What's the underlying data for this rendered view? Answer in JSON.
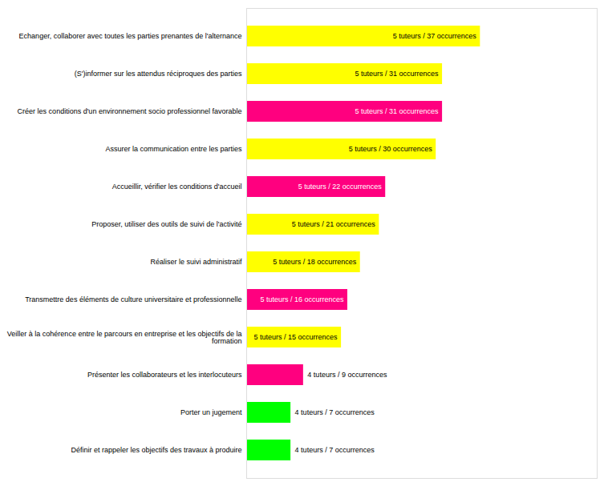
{
  "chart_data": {
    "type": "bar",
    "orientation": "horizontal",
    "categories": [
      "Echanger, collaborer avec toutes les parties prenantes de l'alternance",
      "(S')informer sur les attendus réciproques des parties",
      "Créer les conditions d'un environnement socio professionnel favorable",
      "Assurer la communication entre les parties",
      "Accueillir, vérifier les conditions d'accueil",
      "Proposer, utiliser des outils de suivi de l'activité",
      "Réaliser le suivi administratif",
      "Transmettre des éléments de culture universitaire et professionnelle",
      "Veiller à la cohérence entre le parcours en entreprise et les objectifs de la\nformation",
      "Présenter les collaborateurs et les interlocuteurs",
      "Porter un jugement",
      "Définir et rappeler les objectifs des travaux à produire"
    ],
    "values": [
      37,
      31,
      31,
      30,
      22,
      21,
      18,
      16,
      15,
      9,
      7,
      7
    ],
    "value_labels": [
      "5 tuteurs / 37 occurrences",
      "5 tuteurs / 31 occurrences",
      "5 tuteurs / 31 occurrences",
      "5 tuteurs / 30 occurrences",
      "5 tuteurs / 22 occurrences",
      "5 tuteurs / 21 occurrences",
      "5 tuteurs / 18 occurrences",
      "5 tuteurs / 16 occurrences",
      "5 tuteurs / 15 occurrences",
      "4 tuteurs / 9 occurrences",
      "4 tuteurs / 7 occurrences",
      "4 tuteurs / 7 occurrences"
    ],
    "colors": [
      "#FFFF00",
      "#FFFF00",
      "#FF007F",
      "#FFFF00",
      "#FF007F",
      "#FFFF00",
      "#FFFF00",
      "#FF007F",
      "#FFFF00",
      "#FF007F",
      "#00FF00",
      "#00FF00"
    ],
    "xlim": [
      0,
      55.5
    ],
    "data_labels": true,
    "tick_labels": "y",
    "grid": false
  }
}
